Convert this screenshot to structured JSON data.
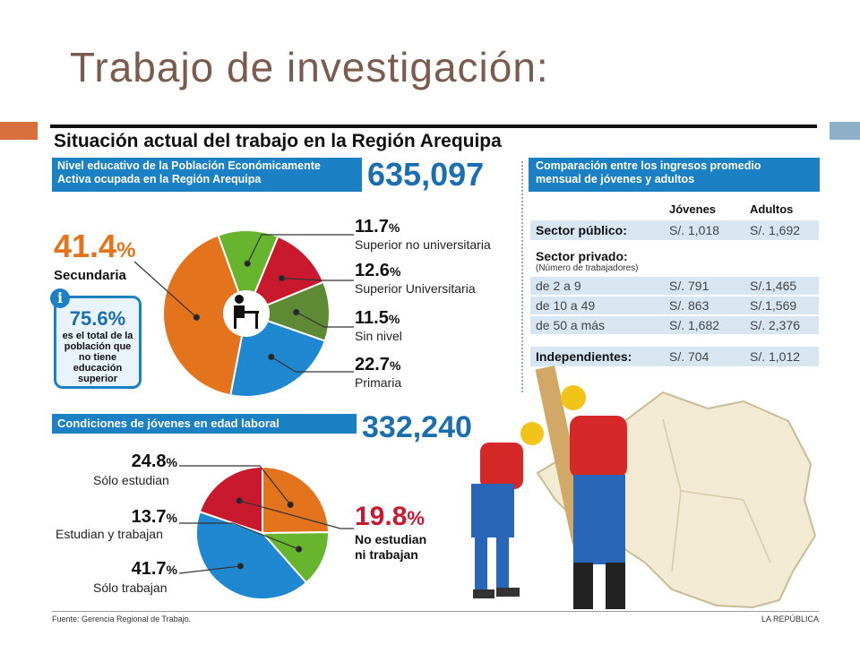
{
  "slide": {
    "title": "Trabajo de investigación:"
  },
  "infographic": {
    "title": "Situación actual del trabajo en la Región Arequipa",
    "footer_source": "Fuente: Gerencia Regional de Trabajo.",
    "footer_credit": "LA REPÚBLICA"
  },
  "education": {
    "header_line1": "Nivel educativo de la Población Económicamente",
    "header_line2": "Activa ocupada en la Región Arequipa",
    "total": "635,097",
    "info_pct": "75.6%",
    "info_text": [
      "es el total de la",
      "población que",
      "no tiene",
      "educación",
      "superior"
    ],
    "slices": [
      {
        "pct": "41.4",
        "label": "Secundaria",
        "color": "#e3731c"
      },
      {
        "pct": "11.7",
        "label": "Superior no universitaria",
        "color": "#67b52f"
      },
      {
        "pct": "12.6",
        "label": "Superior Universitaria",
        "color": "#c8192e"
      },
      {
        "pct": "11.5",
        "label": "Sin nivel",
        "color": "#5f8a35"
      },
      {
        "pct": "22.7",
        "label": "Primaria",
        "color": "#2087d1"
      }
    ]
  },
  "youth": {
    "header": "Condiciones de jóvenes en edad laboral",
    "total": "332,240",
    "slices": [
      {
        "pct": "24.8",
        "label": "Sólo estudian",
        "color": "#e3731c"
      },
      {
        "pct": "13.7",
        "label": "Estudian y trabajan",
        "color": "#67b52f"
      },
      {
        "pct": "41.7",
        "label": "Sólo trabajan",
        "color": "#2087d1"
      },
      {
        "pct": "19.8",
        "label": "No estudian ni trabajan",
        "label_l1": "No estudian",
        "label_l2": "ni trabajan",
        "color": "#c8192e"
      }
    ]
  },
  "income": {
    "header_line1": "Comparación entre los ingresos promedio",
    "header_line2": "mensual de jóvenes y adultos",
    "col_young": "Jóvenes",
    "col_adult": "Adultos",
    "public_label": "Sector público:",
    "public_young": "S/. 1,018",
    "public_adult": "S/. 1,692",
    "private_label": "Sector privado:",
    "private_sub": "(Número de trabajadores)",
    "private_rows": [
      {
        "range": "de 2 a 9",
        "young": "S/. 791",
        "adult": "S/.1,465"
      },
      {
        "range": "de 10 a 49",
        "young": "S/. 863",
        "adult": "S/.1,569"
      },
      {
        "range": "de 50 a más",
        "young": "S/. 1,682",
        "adult": "S/. 2,376"
      }
    ],
    "indep_label": "Independientes:",
    "indep_young": "S/. 704",
    "indep_adult": "S/. 1,012"
  },
  "chart_data": [
    {
      "type": "pie",
      "title": "Nivel educativo de la Población Económicamente Activa ocupada en la Región Arequipa",
      "categories": [
        "Secundaria",
        "Superior no universitaria",
        "Superior Universitaria",
        "Sin nivel",
        "Primaria"
      ],
      "values": [
        41.4,
        11.7,
        12.6,
        11.5,
        22.7
      ],
      "total": 635097
    },
    {
      "type": "pie",
      "title": "Condiciones de jóvenes en edad laboral",
      "categories": [
        "Sólo estudian",
        "Estudian y trabajan",
        "Sólo trabajan",
        "No estudian ni trabajan"
      ],
      "values": [
        24.8,
        13.7,
        41.7,
        19.8
      ],
      "total": 332240
    },
    {
      "type": "table",
      "title": "Comparación entre los ingresos promedio mensual de jóvenes y adultos",
      "columns": [
        "",
        "Jóvenes",
        "Adultos"
      ],
      "rows": [
        [
          "Sector público",
          "S/. 1,018",
          "S/. 1,692"
        ],
        [
          "de 2 a 9",
          "S/. 791",
          "S/.1,465"
        ],
        [
          "de 10 a 49",
          "S/. 863",
          "S/.1,569"
        ],
        [
          "de 50 a más",
          "S/. 1,682",
          "S/. 2,376"
        ],
        [
          "Independientes",
          "S/. 704",
          "S/. 1,012"
        ]
      ]
    }
  ]
}
